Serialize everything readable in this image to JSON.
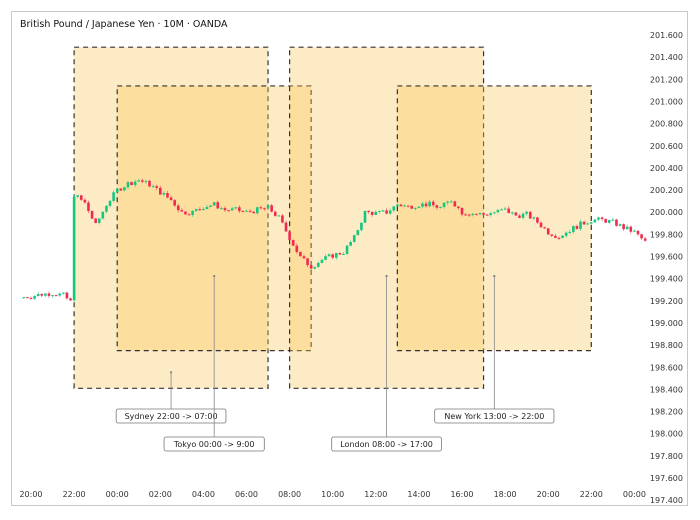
{
  "title": "British Pound / Japanese Yen · 10M · OANDA",
  "chart_data": {
    "type": "candlestick",
    "title": "British Pound / Japanese Yen · 10M · OANDA",
    "interval": "10M",
    "colors": {
      "up": "#14c77e",
      "down": "#f2294e",
      "session_fill": "#f9c75a",
      "border": "#333333"
    },
    "ylim": [
      197.3,
      201.7
    ],
    "y_ticks": [
      "201.600",
      "201.400",
      "201.200",
      "201.000",
      "200.800",
      "200.600",
      "200.400",
      "200.200",
      "200.000",
      "199.800",
      "199.600",
      "199.400",
      "199.200",
      "199.000",
      "198.800",
      "198.600",
      "198.400",
      "198.200",
      "198.000",
      "197.800",
      "197.600",
      "197.400"
    ],
    "x_ticks": [
      "20:00",
      "22:00",
      "00:00",
      "02:00",
      "04:00",
      "06:00",
      "08:00",
      "10:00",
      "12:00",
      "14:00",
      "16:00",
      "18:00",
      "20:00",
      "22:00",
      "00:00"
    ],
    "grid": false,
    "closes_30m": [
      {
        "t": "19:30",
        "c": 199.23
      },
      {
        "t": "20:00",
        "c": 199.24
      },
      {
        "t": "20:30",
        "c": 199.26
      },
      {
        "t": "21:00",
        "c": 199.27
      },
      {
        "t": "21:30",
        "c": 199.25
      },
      {
        "t": "21:50",
        "c": 199.19
      },
      {
        "t": "22:00",
        "c": 200.16
      },
      {
        "t": "22:30",
        "c": 200.08
      },
      {
        "t": "23:00",
        "c": 199.88
      },
      {
        "t": "23:30",
        "c": 200.07
      },
      {
        "t": "00:00",
        "c": 200.2
      },
      {
        "t": "00:30",
        "c": 200.26
      },
      {
        "t": "01:00",
        "c": 200.29
      },
      {
        "t": "01:30",
        "c": 200.25
      },
      {
        "t": "02:00",
        "c": 200.18
      },
      {
        "t": "02:30",
        "c": 200.11
      },
      {
        "t": "03:00",
        "c": 200.0
      },
      {
        "t": "03:30",
        "c": 200.0
      },
      {
        "t": "04:00",
        "c": 200.05
      },
      {
        "t": "04:30",
        "c": 200.07
      },
      {
        "t": "05:00",
        "c": 200.02
      },
      {
        "t": "05:30",
        "c": 200.02
      },
      {
        "t": "06:00",
        "c": 200.0
      },
      {
        "t": "06:30",
        "c": 200.02
      },
      {
        "t": "07:00",
        "c": 200.04
      },
      {
        "t": "07:30",
        "c": 199.95
      },
      {
        "t": "08:00",
        "c": 199.77
      },
      {
        "t": "08:30",
        "c": 199.59
      },
      {
        "t": "09:00",
        "c": 199.51
      },
      {
        "t": "09:30",
        "c": 199.57
      },
      {
        "t": "10:00",
        "c": 199.61
      },
      {
        "t": "10:30",
        "c": 199.64
      },
      {
        "t": "11:00",
        "c": 199.77
      },
      {
        "t": "11:30",
        "c": 200.0
      },
      {
        "t": "12:00",
        "c": 199.99
      },
      {
        "t": "12:30",
        "c": 200.0
      },
      {
        "t": "13:00",
        "c": 200.07
      },
      {
        "t": "13:30",
        "c": 200.05
      },
      {
        "t": "14:00",
        "c": 200.07
      },
      {
        "t": "14:30",
        "c": 200.07
      },
      {
        "t": "15:00",
        "c": 200.04
      },
      {
        "t": "15:30",
        "c": 200.11
      },
      {
        "t": "16:00",
        "c": 200.0
      },
      {
        "t": "16:30",
        "c": 199.99
      },
      {
        "t": "17:00",
        "c": 199.98
      },
      {
        "t": "17:30",
        "c": 200.0
      },
      {
        "t": "18:00",
        "c": 200.02
      },
      {
        "t": "18:30",
        "c": 199.97
      },
      {
        "t": "19:00",
        "c": 199.98
      },
      {
        "t": "19:30",
        "c": 199.91
      },
      {
        "t": "20:00",
        "c": 199.82
      },
      {
        "t": "20:30",
        "c": 199.78
      },
      {
        "t": "21:00",
        "c": 199.84
      },
      {
        "t": "21:30",
        "c": 199.89
      },
      {
        "t": "22:00",
        "c": 199.93
      },
      {
        "t": "22:30",
        "c": 199.93
      },
      {
        "t": "23:00",
        "c": 199.91
      },
      {
        "t": "23:30",
        "c": 199.86
      },
      {
        "t": "00:00",
        "c": 199.82
      },
      {
        "t": "00:30",
        "c": 199.73
      }
    ],
    "sessions": [
      {
        "label": "Sydney 22:00 -> 07:00",
        "start": "22:00",
        "end": "07:00",
        "start_day": 0,
        "end_day": 1,
        "high": 201.49,
        "low": 198.41,
        "label_row": 0
      },
      {
        "label": "Tokyo 00:00 -> 9:00",
        "start": "00:00",
        "end": "09:00",
        "start_day": 1,
        "end_day": 1,
        "high": 201.14,
        "low": 198.75,
        "label_row": 1
      },
      {
        "label": "London 08:00 -> 17:00",
        "start": "08:00",
        "end": "17:00",
        "start_day": 1,
        "end_day": 1,
        "high": 201.49,
        "low": 198.41,
        "label_row": 1
      },
      {
        "label": "New York 13:00 -> 22:00",
        "start": "13:00",
        "end": "22:00",
        "start_day": 1,
        "end_day": 1,
        "high": 201.14,
        "low": 198.75,
        "label_row": 0
      }
    ]
  }
}
